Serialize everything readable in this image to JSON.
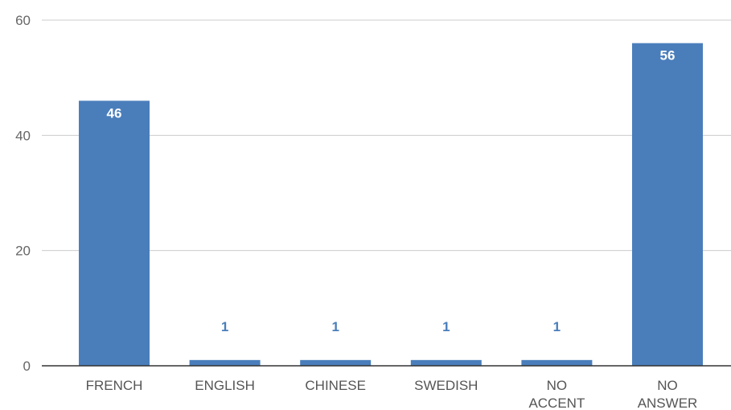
{
  "chart_data": {
    "type": "bar",
    "categories": [
      [
        "FRENCH"
      ],
      [
        "ENGLISH"
      ],
      [
        "CHINESE"
      ],
      [
        "SWEDISH"
      ],
      [
        "NO",
        "ACCENT"
      ],
      [
        "NO",
        "ANSWER"
      ]
    ],
    "values": [
      46,
      1,
      1,
      1,
      1,
      56
    ],
    "data_labels": [
      "46",
      "1",
      "1",
      "1",
      "1",
      "56"
    ],
    "y_ticks": [
      0,
      20,
      40,
      60
    ],
    "ylim": [
      0,
      60
    ],
    "grid": true,
    "legend": "none",
    "bar_color": "#4a7ebb",
    "label_inside_color": "#ffffff",
    "label_outside_color": "#4a7ebb"
  }
}
